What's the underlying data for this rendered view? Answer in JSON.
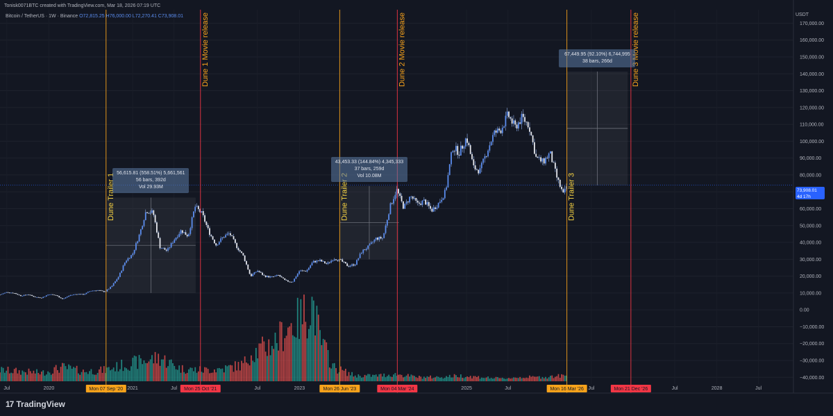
{
  "header": {
    "text": "Tonisk0071BTC created with TradingView.com, Mar 18, 2026 07:19 UTC"
  },
  "legend": {
    "symbol": "Bitcoin / TetherUS · 1W · Binance",
    "open": "O72,815.25",
    "high": "H76,000.00",
    "low": "L72,270.41",
    "close": "C73,908.01"
  },
  "currency": "USDT",
  "current_price": {
    "value": "73,908.01",
    "countdown": "4d 17h"
  },
  "logo": {
    "mark": "17",
    "text": "TradingView"
  },
  "colors": {
    "background": "#131722",
    "candle": "#5b8def",
    "vol_up": "#26a69a",
    "vol_down": "#ef5350",
    "trailer_line": "#f7a21b",
    "release_line": "#f23645",
    "trailer_text": "#f5d142",
    "release_text": "#f7a21b"
  },
  "events": [
    {
      "type": "trailer",
      "label": "Dune Trailer 1",
      "date_label": "Mon 07 Sep '20",
      "date": "2020-09-07"
    },
    {
      "type": "release",
      "label": "Dune 1 Movie release",
      "date_label": "Mon 25 Oct '21",
      "date": "2021-10-25"
    },
    {
      "type": "trailer",
      "label": "Dune Trailer 2",
      "date_label": "Mon 26 Jun '23",
      "date": "2023-06-26"
    },
    {
      "type": "release",
      "label": "Dune 2 Movie release",
      "date_label": "Mon 04 Mar '24",
      "date": "2024-03-04"
    },
    {
      "type": "trailer",
      "label": "Dune Trailer 3",
      "date_label": "Mon 16 Mar '26",
      "date": "2026-03-16"
    },
    {
      "type": "release",
      "label": "Dune 3 Movie release",
      "date_label": "Mon 21 Dec '26",
      "date": "2026-12-21"
    }
  ],
  "measures": [
    {
      "line1": "56,615.81 (558.51%) 5,661,561",
      "line2": "56 bars, 392d",
      "line3": "Vol 29.93M",
      "from_date": "2020-09-07",
      "to_date": "2021-10-04",
      "from_price": 10000,
      "to_price": 66600
    },
    {
      "line1": "43,453.33 (144.84%) 4,345,333",
      "line2": "37 bars, 259d",
      "line3": "Vol 10.08M",
      "from_date": "2023-06-26",
      "to_date": "2024-03-11",
      "from_price": 30000,
      "to_price": 73450
    },
    {
      "line1": "67,449.95 (92.10%) 6,744,995",
      "line2": "38 bars, 266d",
      "line3": "",
      "from_date": "2026-03-16",
      "to_date": "2026-12-07",
      "from_price": 73900,
      "to_price": 141350
    }
  ],
  "chart_data": {
    "type": "candlestick",
    "title": "",
    "xlabel": "",
    "ylabel": "",
    "x_ticks": [
      "Jul",
      "2020",
      "2021",
      "Jul",
      "Jul",
      "2023",
      "Jul",
      "2025",
      "Jul",
      "Jul",
      "Jul",
      "2028",
      "Jul"
    ],
    "x_tick_dates": [
      "2019-07-01",
      "2020-01-01",
      "2021-01-01",
      "2021-07-01",
      "2022-07-01",
      "2023-01-01",
      "2023-07-01",
      "2025-01-01",
      "2025-07-01",
      "2026-07-01",
      "2027-07-01",
      "2028-01-01",
      "2028-07-01"
    ],
    "y_ticks": [
      170000,
      160000,
      150000,
      140000,
      130000,
      120000,
      110000,
      100000,
      90000,
      80000,
      70000,
      60000,
      50000,
      40000,
      30000,
      20000,
      10000,
      0,
      -10000,
      -20000,
      -30000,
      -40000
    ],
    "y_tick_labels": [
      "170,000.00",
      "160,000.00",
      "150,000.00",
      "140,000.00",
      "130,000.00",
      "120,000.00",
      "110,000.00",
      "100,000.00",
      "90,000.00",
      "80,000.00",
      "70,000.00",
      "60,000.00",
      "50,000.00",
      "40,000.00",
      "30,000.00",
      "20,000.00",
      "10,000.00",
      "0.00",
      "−10,000.00",
      "−20,000.00",
      "−30,000.00",
      "−40,000.00"
    ],
    "ylim": [
      -44000,
      178000
    ],
    "xlim": [
      "2019-06-01",
      "2028-12-01"
    ],
    "price_series": [
      [
        "2019-06-01",
        9000
      ],
      [
        "2019-07-01",
        10500
      ],
      [
        "2019-08-01",
        10000
      ],
      [
        "2019-09-01",
        8300
      ],
      [
        "2019-10-01",
        9200
      ],
      [
        "2019-11-01",
        7600
      ],
      [
        "2019-12-01",
        7200
      ],
      [
        "2020-01-01",
        9300
      ],
      [
        "2020-02-01",
        8600
      ],
      [
        "2020-03-01",
        6400
      ],
      [
        "2020-04-01",
        8600
      ],
      [
        "2020-05-01",
        9400
      ],
      [
        "2020-06-01",
        9100
      ],
      [
        "2020-07-01",
        11300
      ],
      [
        "2020-08-01",
        11600
      ],
      [
        "2020-09-01",
        10700
      ],
      [
        "2020-10-01",
        13800
      ],
      [
        "2020-11-01",
        19700
      ],
      [
        "2020-12-01",
        29000
      ],
      [
        "2021-01-01",
        33100
      ],
      [
        "2021-02-01",
        45100
      ],
      [
        "2021-03-01",
        58800
      ],
      [
        "2021-04-01",
        57700
      ],
      [
        "2021-05-01",
        37300
      ],
      [
        "2021-06-01",
        35000
      ],
      [
        "2021-07-01",
        41500
      ],
      [
        "2021-08-01",
        47100
      ],
      [
        "2021-09-01",
        43800
      ],
      [
        "2021-10-01",
        61300
      ],
      [
        "2021-11-01",
        57000
      ],
      [
        "2021-12-01",
        46200
      ],
      [
        "2022-01-01",
        38500
      ],
      [
        "2022-02-01",
        43200
      ],
      [
        "2022-03-01",
        45500
      ],
      [
        "2022-04-01",
        37600
      ],
      [
        "2022-05-01",
        31800
      ],
      [
        "2022-06-01",
        19900
      ],
      [
        "2022-07-01",
        23300
      ],
      [
        "2022-08-01",
        20000
      ],
      [
        "2022-09-01",
        19400
      ],
      [
        "2022-10-01",
        20500
      ],
      [
        "2022-11-01",
        17200
      ],
      [
        "2022-12-01",
        16500
      ],
      [
        "2023-01-01",
        23100
      ],
      [
        "2023-02-01",
        23100
      ],
      [
        "2023-03-01",
        28500
      ],
      [
        "2023-04-01",
        29200
      ],
      [
        "2023-05-01",
        27200
      ],
      [
        "2023-06-01",
        30500
      ],
      [
        "2023-07-01",
        29200
      ],
      [
        "2023-08-01",
        26000
      ],
      [
        "2023-09-01",
        27000
      ],
      [
        "2023-10-01",
        34600
      ],
      [
        "2023-11-01",
        37700
      ],
      [
        "2023-12-01",
        42300
      ],
      [
        "2024-01-01",
        42600
      ],
      [
        "2024-02-01",
        61100
      ],
      [
        "2024-03-01",
        71300
      ],
      [
        "2024-04-01",
        60600
      ],
      [
        "2024-05-01",
        67500
      ],
      [
        "2024-06-01",
        62700
      ],
      [
        "2024-07-01",
        64600
      ],
      [
        "2024-08-01",
        58900
      ],
      [
        "2024-09-01",
        63300
      ],
      [
        "2024-10-01",
        70200
      ],
      [
        "2024-11-01",
        96400
      ],
      [
        "2024-12-01",
        93400
      ],
      [
        "2025-01-01",
        102400
      ],
      [
        "2025-02-01",
        84300
      ],
      [
        "2025-03-01",
        82500
      ],
      [
        "2025-04-01",
        94200
      ],
      [
        "2025-05-01",
        104600
      ],
      [
        "2025-06-01",
        107100
      ],
      [
        "2025-07-01",
        115700
      ],
      [
        "2025-08-01",
        108200
      ],
      [
        "2025-09-01",
        114000
      ],
      [
        "2025-10-01",
        109500
      ],
      [
        "2025-11-01",
        90300
      ],
      [
        "2025-12-01",
        87500
      ],
      [
        "2026-01-01",
        93000
      ],
      [
        "2026-02-01",
        78000
      ],
      [
        "2026-03-01",
        68000
      ],
      [
        "2026-03-16",
        73908
      ]
    ],
    "volume_series": [
      [
        "2019-06-01",
        8
      ],
      [
        "2019-09-01",
        7
      ],
      [
        "2019-12-01",
        6
      ],
      [
        "2020-03-01",
        10
      ],
      [
        "2020-06-01",
        7
      ],
      [
        "2020-09-01",
        8
      ],
      [
        "2020-12-01",
        12
      ],
      [
        "2021-02-01",
        14
      ],
      [
        "2021-05-01",
        17
      ],
      [
        "2021-08-01",
        9
      ],
      [
        "2021-11-01",
        8
      ],
      [
        "2022-02-01",
        9
      ],
      [
        "2022-05-01",
        12
      ],
      [
        "2022-06-01",
        20
      ],
      [
        "2022-08-01",
        24
      ],
      [
        "2022-10-01",
        30
      ],
      [
        "2022-11-01",
        38
      ],
      [
        "2023-01-01",
        44
      ],
      [
        "2023-03-01",
        56
      ],
      [
        "2023-04-01",
        30
      ],
      [
        "2023-06-01",
        10
      ],
      [
        "2023-09-01",
        4
      ],
      [
        "2023-12-01",
        4
      ],
      [
        "2024-03-01",
        5
      ],
      [
        "2024-06-01",
        3
      ],
      [
        "2024-09-01",
        3
      ],
      [
        "2024-12-01",
        4
      ],
      [
        "2025-03-01",
        3
      ],
      [
        "2025-06-01",
        2
      ],
      [
        "2025-09-01",
        3
      ],
      [
        "2025-12-01",
        3
      ],
      [
        "2026-03-01",
        4
      ]
    ]
  }
}
